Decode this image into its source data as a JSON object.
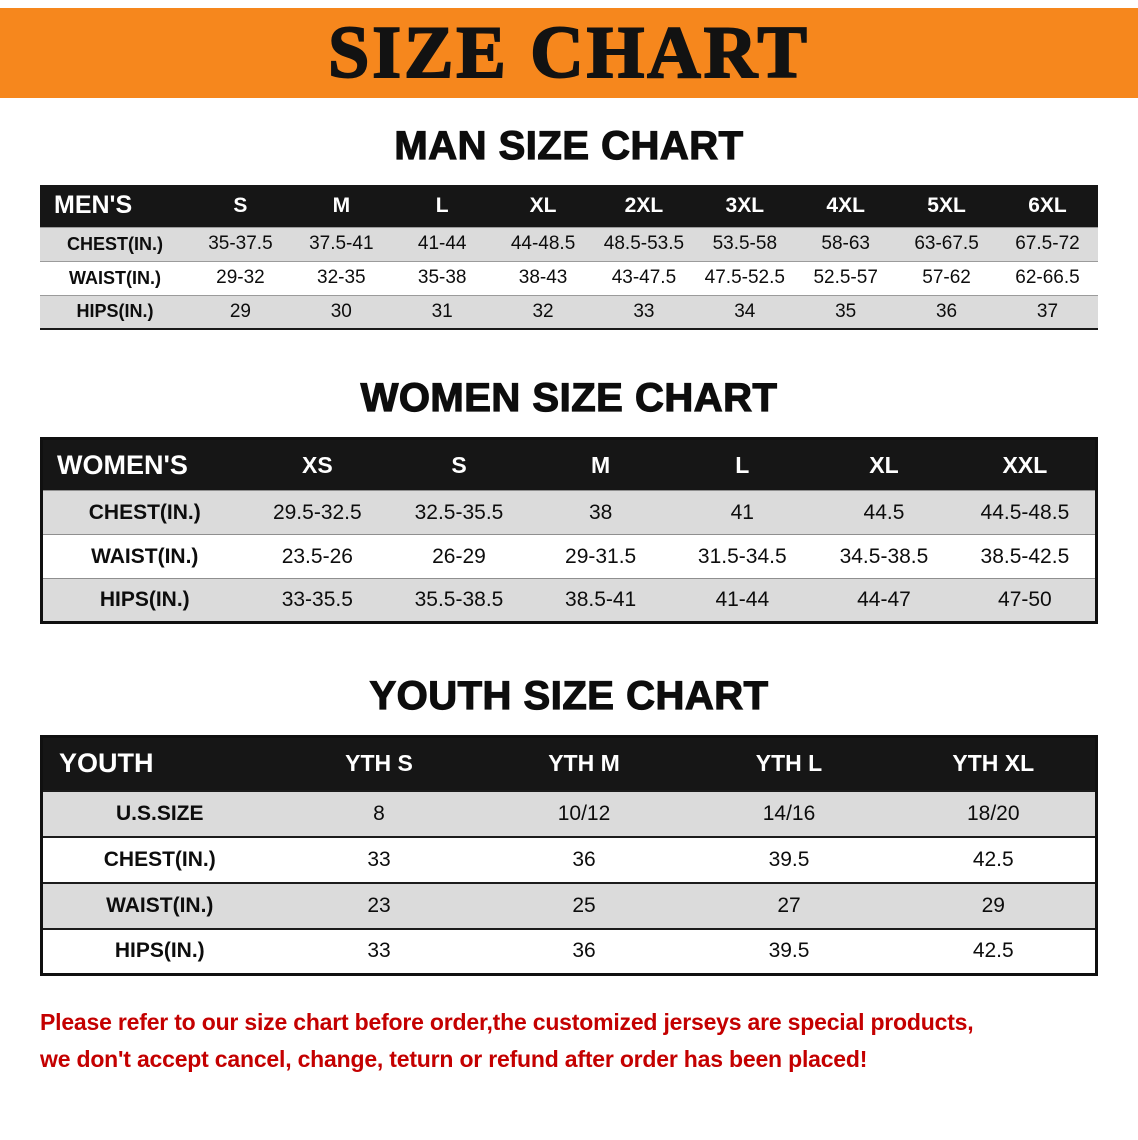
{
  "banner": {
    "title": "SIZE CHART",
    "bg_color": "#F6871D",
    "text_color": "#121212"
  },
  "sections": [
    {
      "heading": "MAN SIZE CHART",
      "label": "MEN'S",
      "columns": [
        "S",
        "M",
        "L",
        "XL",
        "2XL",
        "3XL",
        "4XL",
        "5XL",
        "6XL"
      ],
      "rows": [
        {
          "label": "CHEST(IN.)",
          "values": [
            "35-37.5",
            "37.5-41",
            "41-44",
            "44-48.5",
            "48.5-53.5",
            "53.5-58",
            "58-63",
            "63-67.5",
            "67.5-72"
          ]
        },
        {
          "label": "WAIST(IN.)",
          "values": [
            "29-32",
            "32-35",
            "35-38",
            "38-43",
            "43-47.5",
            "47.5-52.5",
            "52.5-57",
            "57-62",
            "62-66.5"
          ]
        },
        {
          "label": "HIPS(IN.)",
          "values": [
            "29",
            "30",
            "31",
            "32",
            "33",
            "34",
            "35",
            "36",
            "37"
          ]
        }
      ]
    },
    {
      "heading": "WOMEN SIZE CHART",
      "label": "WOMEN'S",
      "columns": [
        "XS",
        "S",
        "M",
        "L",
        "XL",
        "XXL"
      ],
      "rows": [
        {
          "label": "CHEST(IN.)",
          "values": [
            "29.5-32.5",
            "32.5-35.5",
            "38",
            "41",
            "44.5",
            "44.5-48.5"
          ]
        },
        {
          "label": "WAIST(IN.)",
          "values": [
            "23.5-26",
            "26-29",
            "29-31.5",
            "31.5-34.5",
            "34.5-38.5",
            "38.5-42.5"
          ]
        },
        {
          "label": "HIPS(IN.)",
          "values": [
            "33-35.5",
            "35.5-38.5",
            "38.5-41",
            "41-44",
            "44-47",
            "47-50"
          ]
        }
      ]
    },
    {
      "heading": "YOUTH SIZE CHART",
      "label": "YOUTH",
      "columns": [
        "YTH S",
        "YTH M",
        "YTH L",
        "YTH XL"
      ],
      "rows": [
        {
          "label": "U.S.SIZE",
          "values": [
            "8",
            "10/12",
            "14/16",
            "18/20"
          ]
        },
        {
          "label": "CHEST(IN.)",
          "values": [
            "33",
            "36",
            "39.5",
            "42.5"
          ]
        },
        {
          "label": "WAIST(IN.)",
          "values": [
            "23",
            "25",
            "27",
            "29"
          ]
        },
        {
          "label": "HIPS(IN.)",
          "values": [
            "33",
            "36",
            "39.5",
            "42.5"
          ]
        }
      ]
    }
  ],
  "footer": {
    "line1": "Please refer to our size chart before order,the customized jerseys are special products,",
    "line2": "we don't accept cancel, change, teturn or refund after order has been placed!",
    "text_color": "#C40000"
  }
}
